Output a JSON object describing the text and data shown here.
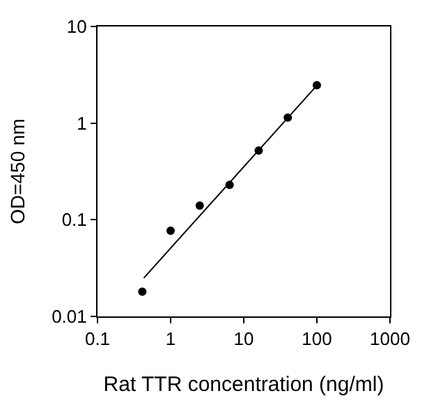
{
  "chart_data": {
    "type": "scatter",
    "xlabel": "Rat TTR concentration (ng/ml)",
    "ylabel": "OD=450 nm",
    "log": "xy",
    "xlim": [
      0.1,
      1000
    ],
    "xticks": [
      0.1,
      1,
      10,
      100,
      1000
    ],
    "ylim": [
      0.01,
      10
    ],
    "yticks": [
      0.01,
      0.1,
      1,
      10
    ],
    "series": [
      {
        "color": "#000000",
        "marker": "circle",
        "x": [
          0.41,
          1,
          2.5,
          6.4,
          16,
          40,
          100
        ],
        "values": [
          0.018,
          0.077,
          0.14,
          0.23,
          0.52,
          1.14,
          2.47
        ]
      },
      {
        "type": "line",
        "color": "#000000",
        "x": [
          0.43,
          100
        ],
        "values": [
          0.025,
          2.45
        ],
        "line_style": "solid"
      }
    ]
  }
}
